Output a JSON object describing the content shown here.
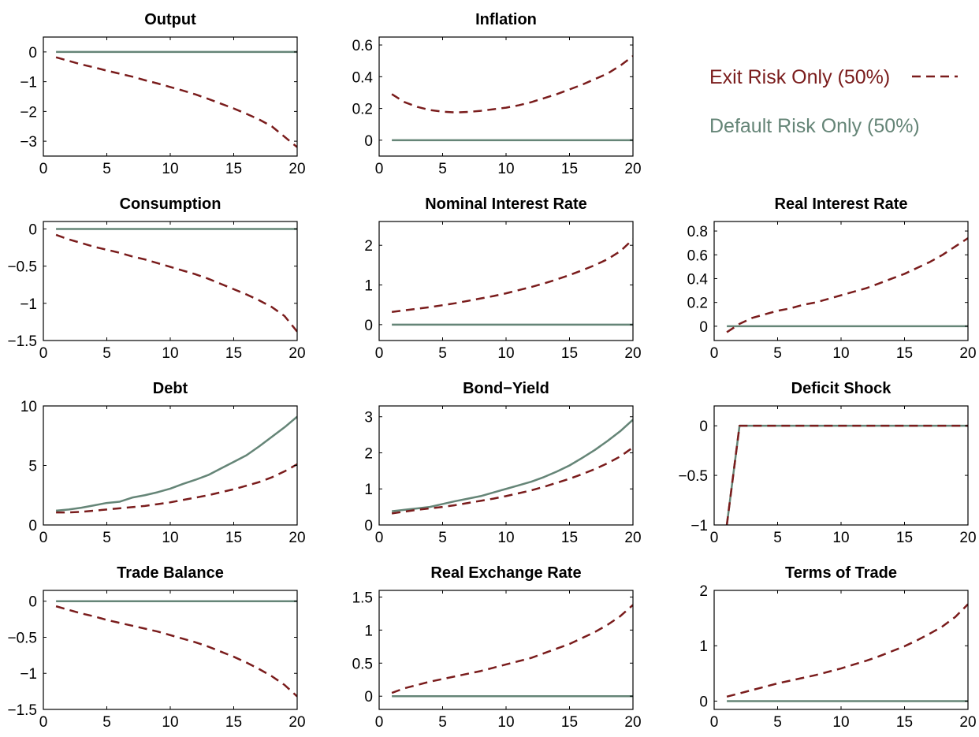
{
  "colors": {
    "exit": "#7a1c1c",
    "default": "#658577",
    "axis": "#000000"
  },
  "legend": {
    "exit_label": "Exit Risk Only (50%)",
    "default_label": "Default Risk Only (50%)"
  },
  "chart_data": [
    {
      "type": "line",
      "title": "Output",
      "xlim": [
        0,
        20
      ],
      "ylim": [
        -3.5,
        0.5
      ],
      "xticks": [
        0,
        5,
        10,
        15,
        20
      ],
      "yticks": [
        0,
        -1,
        -2,
        -3
      ],
      "x": [
        1,
        2,
        3,
        4,
        5,
        6,
        7,
        8,
        9,
        10,
        11,
        12,
        13,
        14,
        15,
        16,
        17,
        18,
        19,
        20
      ],
      "series": [
        {
          "name": "Exit Risk Only (50%)",
          "style": "dashed",
          "values": [
            -0.18,
            -0.3,
            -0.42,
            -0.52,
            -0.63,
            -0.73,
            -0.83,
            -0.95,
            -1.06,
            -1.18,
            -1.3,
            -1.43,
            -1.58,
            -1.74,
            -1.9,
            -2.08,
            -2.27,
            -2.5,
            -2.85,
            -3.2
          ]
        },
        {
          "name": "Default Risk Only (50%)",
          "style": "solid",
          "values": [
            0,
            0,
            0,
            0,
            0,
            0,
            0,
            0,
            0,
            0,
            0,
            0,
            0,
            0,
            0,
            0,
            0,
            0,
            0,
            0
          ]
        }
      ]
    },
    {
      "type": "line",
      "title": "Inflation",
      "xlim": [
        0,
        20
      ],
      "ylim": [
        -0.1,
        0.65
      ],
      "xticks": [
        0,
        5,
        10,
        15,
        20
      ],
      "yticks": [
        0,
        0.2,
        0.4,
        0.6
      ],
      "x": [
        1,
        2,
        3,
        4,
        5,
        6,
        7,
        8,
        9,
        10,
        11,
        12,
        13,
        14,
        15,
        16,
        17,
        18,
        19,
        20
      ],
      "series": [
        {
          "name": "Exit Risk Only (50%)",
          "style": "dashed",
          "values": [
            0.29,
            0.24,
            0.21,
            0.19,
            0.18,
            0.175,
            0.178,
            0.185,
            0.195,
            0.205,
            0.22,
            0.24,
            0.265,
            0.29,
            0.32,
            0.35,
            0.385,
            0.42,
            0.47,
            0.53
          ]
        },
        {
          "name": "Default Risk Only (50%)",
          "style": "solid",
          "values": [
            0,
            0,
            0,
            0,
            0,
            0,
            0,
            0,
            0,
            0,
            0,
            0,
            0,
            0,
            0,
            0,
            0,
            0,
            0,
            0
          ]
        }
      ]
    },
    {
      "type": "line",
      "title": "Consumption",
      "xlim": [
        0,
        20
      ],
      "ylim": [
        -1.5,
        0.1
      ],
      "xticks": [
        0,
        5,
        10,
        15,
        20
      ],
      "yticks": [
        0,
        -0.5,
        -1,
        -1.5
      ],
      "x": [
        1,
        2,
        3,
        4,
        5,
        6,
        7,
        8,
        9,
        10,
        11,
        12,
        13,
        14,
        15,
        16,
        17,
        18,
        19,
        20
      ],
      "series": [
        {
          "name": "Exit Risk Only (50%)",
          "style": "dashed",
          "values": [
            -0.08,
            -0.14,
            -0.19,
            -0.24,
            -0.28,
            -0.32,
            -0.37,
            -0.41,
            -0.46,
            -0.51,
            -0.56,
            -0.61,
            -0.67,
            -0.74,
            -0.81,
            -0.88,
            -0.96,
            -1.05,
            -1.17,
            -1.38
          ]
        },
        {
          "name": "Default Risk Only (50%)",
          "style": "solid",
          "values": [
            0,
            0,
            0,
            0,
            0,
            0,
            0,
            0,
            0,
            0,
            0,
            0,
            0,
            0,
            0,
            0,
            0,
            0,
            0,
            0
          ]
        }
      ]
    },
    {
      "type": "line",
      "title": "Nominal Interest Rate",
      "xlim": [
        0,
        20
      ],
      "ylim": [
        -0.4,
        2.6
      ],
      "xticks": [
        0,
        5,
        10,
        15,
        20
      ],
      "yticks": [
        0,
        1,
        2
      ],
      "x": [
        1,
        2,
        3,
        4,
        5,
        6,
        7,
        8,
        9,
        10,
        11,
        12,
        13,
        14,
        15,
        16,
        17,
        18,
        19,
        20
      ],
      "series": [
        {
          "name": "Exit Risk Only (50%)",
          "style": "dashed",
          "values": [
            0.32,
            0.36,
            0.4,
            0.44,
            0.49,
            0.54,
            0.6,
            0.66,
            0.72,
            0.79,
            0.87,
            0.95,
            1.04,
            1.14,
            1.25,
            1.37,
            1.5,
            1.65,
            1.85,
            2.15
          ]
        },
        {
          "name": "Default Risk Only (50%)",
          "style": "solid",
          "values": [
            0,
            0,
            0,
            0,
            0,
            0,
            0,
            0,
            0,
            0,
            0,
            0,
            0,
            0,
            0,
            0,
            0,
            0,
            0,
            0
          ]
        }
      ]
    },
    {
      "type": "line",
      "title": "Real Interest Rate",
      "xlim": [
        0,
        20
      ],
      "ylim": [
        -0.12,
        0.88
      ],
      "xticks": [
        0,
        5,
        10,
        15,
        20
      ],
      "yticks": [
        0,
        0.2,
        0.4,
        0.6,
        0.8
      ],
      "x": [
        1,
        2,
        3,
        4,
        5,
        6,
        7,
        8,
        9,
        10,
        11,
        12,
        13,
        14,
        15,
        16,
        17,
        18,
        19,
        20
      ],
      "series": [
        {
          "name": "Exit Risk Only (50%)",
          "style": "dashed",
          "values": [
            -0.05,
            0.02,
            0.07,
            0.1,
            0.13,
            0.15,
            0.18,
            0.2,
            0.23,
            0.26,
            0.29,
            0.32,
            0.36,
            0.4,
            0.44,
            0.49,
            0.54,
            0.6,
            0.67,
            0.74
          ]
        },
        {
          "name": "Default Risk Only (50%)",
          "style": "solid",
          "values": [
            0,
            0,
            0,
            0,
            0,
            0,
            0,
            0,
            0,
            0,
            0,
            0,
            0,
            0,
            0,
            0,
            0,
            0,
            0,
            0
          ]
        }
      ]
    },
    {
      "type": "line",
      "title": "Debt",
      "xlim": [
        0,
        20
      ],
      "ylim": [
        0,
        10
      ],
      "xticks": [
        0,
        5,
        10,
        15,
        20
      ],
      "yticks": [
        0,
        5,
        10
      ],
      "x": [
        1,
        2,
        3,
        4,
        5,
        6,
        7,
        8,
        9,
        10,
        11,
        12,
        13,
        14,
        15,
        16,
        17,
        18,
        19,
        20
      ],
      "series": [
        {
          "name": "Exit Risk Only (50%)",
          "style": "dashed",
          "values": [
            1.05,
            1.05,
            1.1,
            1.2,
            1.3,
            1.4,
            1.5,
            1.6,
            1.75,
            1.9,
            2.1,
            2.3,
            2.5,
            2.75,
            3.0,
            3.3,
            3.6,
            4.0,
            4.5,
            5.1
          ]
        },
        {
          "name": "Default Risk Only (50%)",
          "style": "solid",
          "values": [
            1.2,
            1.3,
            1.45,
            1.65,
            1.85,
            1.95,
            2.3,
            2.5,
            2.75,
            3.05,
            3.45,
            3.8,
            4.2,
            4.75,
            5.3,
            5.85,
            6.6,
            7.4,
            8.2,
            9.1
          ]
        }
      ]
    },
    {
      "type": "line",
      "title": "Bond−Yield",
      "xlim": [
        0,
        20
      ],
      "ylim": [
        0,
        3.3
      ],
      "xticks": [
        0,
        5,
        10,
        15,
        20
      ],
      "yticks": [
        0,
        1,
        2,
        3
      ],
      "x": [
        1,
        2,
        3,
        4,
        5,
        6,
        7,
        8,
        9,
        10,
        11,
        12,
        13,
        14,
        15,
        16,
        17,
        18,
        19,
        20
      ],
      "series": [
        {
          "name": "Exit Risk Only (50%)",
          "style": "dashed",
          "values": [
            0.32,
            0.37,
            0.42,
            0.46,
            0.5,
            0.55,
            0.61,
            0.67,
            0.73,
            0.8,
            0.88,
            0.96,
            1.06,
            1.17,
            1.28,
            1.41,
            1.55,
            1.71,
            1.9,
            2.15
          ]
        },
        {
          "name": "Default Risk Only (50%)",
          "style": "solid",
          "values": [
            0.38,
            0.42,
            0.46,
            0.5,
            0.58,
            0.66,
            0.73,
            0.8,
            0.9,
            1.0,
            1.1,
            1.2,
            1.33,
            1.48,
            1.65,
            1.86,
            2.08,
            2.33,
            2.6,
            2.92
          ]
        }
      ]
    },
    {
      "type": "line",
      "title": "Deficit Shock",
      "xlim": [
        0,
        20
      ],
      "ylim": [
        -1,
        0.2
      ],
      "xticks": [
        0,
        5,
        10,
        15,
        20
      ],
      "yticks": [
        0,
        -0.5,
        -1
      ],
      "x": [
        1,
        2,
        3,
        4,
        5,
        6,
        7,
        8,
        9,
        10,
        11,
        12,
        13,
        14,
        15,
        16,
        17,
        18,
        19,
        20
      ],
      "series": [
        {
          "name": "Exit Risk Only (50%)",
          "style": "dashed",
          "values": [
            -1,
            0,
            0,
            0,
            0,
            0,
            0,
            0,
            0,
            0,
            0,
            0,
            0,
            0,
            0,
            0,
            0,
            0,
            0,
            0
          ]
        },
        {
          "name": "Default Risk Only (50%)",
          "style": "solid",
          "values": [
            -1,
            0,
            0,
            0,
            0,
            0,
            0,
            0,
            0,
            0,
            0,
            0,
            0,
            0,
            0,
            0,
            0,
            0,
            0,
            0
          ]
        }
      ]
    },
    {
      "type": "line",
      "title": "Trade Balance",
      "xlim": [
        0,
        20
      ],
      "ylim": [
        -1.5,
        0.15
      ],
      "xticks": [
        0,
        5,
        10,
        15,
        20
      ],
      "yticks": [
        0,
        -0.5,
        -1,
        -1.5
      ],
      "x": [
        1,
        2,
        3,
        4,
        5,
        6,
        7,
        8,
        9,
        10,
        11,
        12,
        13,
        14,
        15,
        16,
        17,
        18,
        19,
        20
      ],
      "series": [
        {
          "name": "Exit Risk Only (50%)",
          "style": "dashed",
          "values": [
            -0.07,
            -0.12,
            -0.17,
            -0.21,
            -0.26,
            -0.3,
            -0.34,
            -0.38,
            -0.42,
            -0.47,
            -0.52,
            -0.57,
            -0.63,
            -0.7,
            -0.77,
            -0.85,
            -0.94,
            -1.04,
            -1.16,
            -1.32
          ]
        },
        {
          "name": "Default Risk Only (50%)",
          "style": "solid",
          "values": [
            0,
            0,
            0,
            0,
            0,
            0,
            0,
            0,
            0,
            0,
            0,
            0,
            0,
            0,
            0,
            0,
            0,
            0,
            0,
            0
          ]
        }
      ]
    },
    {
      "type": "line",
      "title": "Real Exchange Rate",
      "xlim": [
        0,
        20
      ],
      "ylim": [
        -0.2,
        1.6
      ],
      "xticks": [
        0,
        5,
        10,
        15,
        20
      ],
      "yticks": [
        0,
        0.5,
        1,
        1.5
      ],
      "x": [
        1,
        2,
        3,
        4,
        5,
        6,
        7,
        8,
        9,
        10,
        11,
        12,
        13,
        14,
        15,
        16,
        17,
        18,
        19,
        20
      ],
      "series": [
        {
          "name": "Exit Risk Only (50%)",
          "style": "dashed",
          "values": [
            0.05,
            0.12,
            0.17,
            0.22,
            0.26,
            0.3,
            0.34,
            0.38,
            0.43,
            0.48,
            0.53,
            0.58,
            0.65,
            0.72,
            0.79,
            0.88,
            0.97,
            1.08,
            1.21,
            1.38
          ]
        },
        {
          "name": "Default Risk Only (50%)",
          "style": "solid",
          "values": [
            0,
            0,
            0,
            0,
            0,
            0,
            0,
            0,
            0,
            0,
            0,
            0,
            0,
            0,
            0,
            0,
            0,
            0,
            0,
            0
          ]
        }
      ]
    },
    {
      "type": "line",
      "title": "Terms of Trade",
      "xlim": [
        0,
        20
      ],
      "ylim": [
        -0.15,
        2
      ],
      "xticks": [
        0,
        5,
        10,
        15,
        20
      ],
      "yticks": [
        0,
        1,
        2
      ],
      "x": [
        1,
        2,
        3,
        4,
        5,
        6,
        7,
        8,
        9,
        10,
        11,
        12,
        13,
        14,
        15,
        16,
        17,
        18,
        19,
        20
      ],
      "series": [
        {
          "name": "Exit Risk Only (50%)",
          "style": "dashed",
          "values": [
            0.08,
            0.14,
            0.2,
            0.26,
            0.32,
            0.37,
            0.42,
            0.47,
            0.53,
            0.59,
            0.66,
            0.73,
            0.81,
            0.9,
            0.99,
            1.1,
            1.22,
            1.35,
            1.52,
            1.75
          ]
        },
        {
          "name": "Default Risk Only (50%)",
          "style": "solid",
          "values": [
            0,
            0,
            0,
            0,
            0,
            0,
            0,
            0,
            0,
            0,
            0,
            0,
            0,
            0,
            0,
            0,
            0,
            0,
            0,
            0
          ]
        }
      ]
    }
  ]
}
